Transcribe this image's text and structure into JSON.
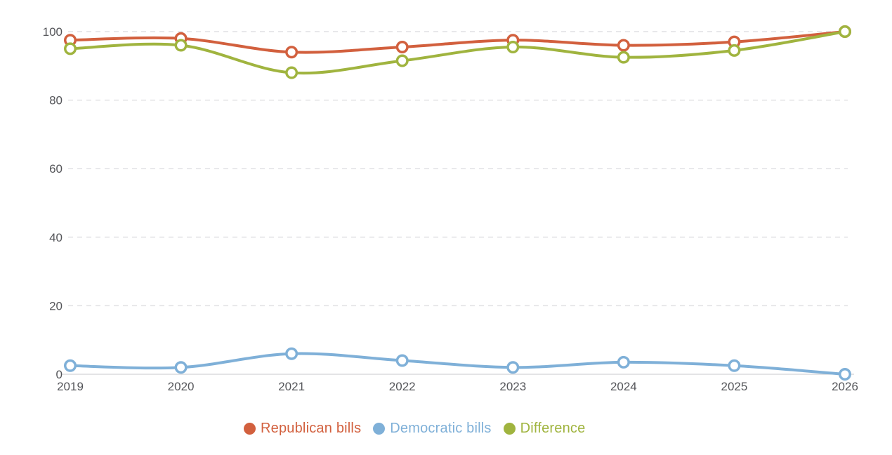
{
  "chart_data": {
    "type": "line",
    "title": "",
    "xlabel": "",
    "ylabel": "",
    "categories": [
      "2019",
      "2020",
      "2021",
      "2022",
      "2023",
      "2024",
      "2025",
      "2026"
    ],
    "series": [
      {
        "name": "Republican bills",
        "color": "#d2603e",
        "values": [
          97.5,
          98,
          94,
          95.5,
          97.5,
          96,
          97,
          100
        ]
      },
      {
        "name": "Democratic bills",
        "color": "#7fb0d8",
        "values": [
          2.5,
          2,
          6,
          4,
          2,
          3.5,
          2.5,
          0
        ]
      },
      {
        "name": "Difference",
        "color": "#a0b43f",
        "values": [
          95,
          96,
          88,
          91.5,
          95.5,
          92.5,
          94.5,
          100
        ]
      }
    ],
    "ylim": [
      0,
      100
    ],
    "y_ticks": [
      0,
      20,
      40,
      60,
      80,
      100
    ],
    "grid": "horizontal-dashed",
    "marker": "open-circle",
    "legend_position": "bottom"
  },
  "style": {
    "background": "#ffffff",
    "grid_color": "#e1e1e4",
    "axis_line_color": "#c9cacd",
    "tick_label_color": "#55565a",
    "marker_fill": "#ffffff"
  }
}
